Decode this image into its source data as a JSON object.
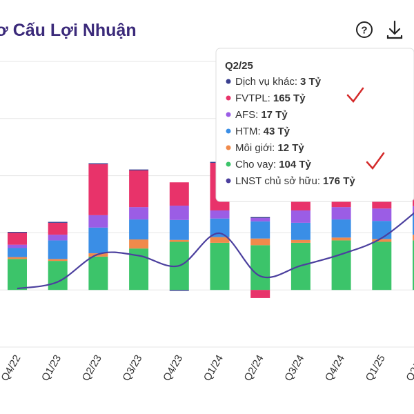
{
  "chart_data": {
    "type": "stacked-bar-line",
    "title": "ơ Cấu Lợi Nhuận",
    "categories": [
      "Q4/22",
      "Q1/23",
      "Q2/23",
      "Q3/23",
      "Q4/23",
      "Q1/24",
      "Q2/24",
      "Q3/24",
      "Q4/24",
      "Q1/25",
      "Q2/25"
    ],
    "ylim": [
      -120,
      480
    ],
    "yticks": [
      -120,
      0,
      120,
      240,
      360,
      480
    ],
    "grid": true,
    "series": [
      {
        "name": "Dịch vụ khác:",
        "color": "#3a3f8f",
        "kind": "bar",
        "values": [
          2,
          2,
          2,
          2,
          -2,
          2,
          2,
          2,
          2,
          2,
          3
        ],
        "value_labels": [
          null,
          null,
          null,
          null,
          null,
          null,
          null,
          null,
          null,
          null,
          "3 Tỷ"
        ]
      },
      {
        "name": "FVTPL:",
        "color": "#e8336a",
        "kind": "bar",
        "values": [
          25,
          25,
          107,
          77,
          49,
          100,
          -17,
          40,
          29,
          29,
          165
        ],
        "value_labels": [
          null,
          null,
          null,
          null,
          null,
          null,
          null,
          null,
          null,
          null,
          "165 Tỷ"
        ]
      },
      {
        "name": "AFS:",
        "color": "#9b5de5",
        "kind": "bar",
        "values": [
          7,
          12,
          26,
          26,
          30,
          17,
          7,
          26,
          26,
          26,
          17
        ],
        "value_labels": [
          null,
          null,
          null,
          null,
          null,
          null,
          null,
          null,
          null,
          null,
          "17 Tỷ"
        ]
      },
      {
        "name": "HTM:",
        "color": "#3a8ee6",
        "kind": "bar",
        "values": [
          19,
          39,
          54,
          42,
          42,
          39,
          36,
          36,
          38,
          38,
          43
        ],
        "value_labels": [
          null,
          null,
          null,
          null,
          null,
          null,
          null,
          null,
          null,
          null,
          "43 Tỷ"
        ]
      },
      {
        "name": "Môi giới:",
        "color": "#f08a4b",
        "kind": "bar",
        "values": [
          4,
          4,
          7,
          19,
          4,
          12,
          14,
          6,
          6,
          6,
          12
        ],
        "value_labels": [
          null,
          null,
          null,
          null,
          null,
          null,
          null,
          null,
          null,
          null,
          "12 Tỷ"
        ]
      },
      {
        "name": "Cho vay:",
        "color": "#3cc46a",
        "kind": "bar",
        "values": [
          65,
          61,
          70,
          87,
          101,
          99,
          94,
          99,
          104,
          101,
          104
        ],
        "value_labels": [
          null,
          null,
          null,
          null,
          null,
          null,
          null,
          null,
          null,
          null,
          "104 Tỷ"
        ]
      },
      {
        "name": "LNST chủ sở hữu:",
        "color": "#4b3f9e",
        "kind": "line",
        "values": [
          3,
          17,
          75,
          72,
          51,
          119,
          29,
          51,
          75,
          109,
          176
        ],
        "value_labels": [
          null,
          null,
          null,
          null,
          null,
          null,
          null,
          null,
          null,
          null,
          "176 Tỷ"
        ]
      }
    ]
  }
}
